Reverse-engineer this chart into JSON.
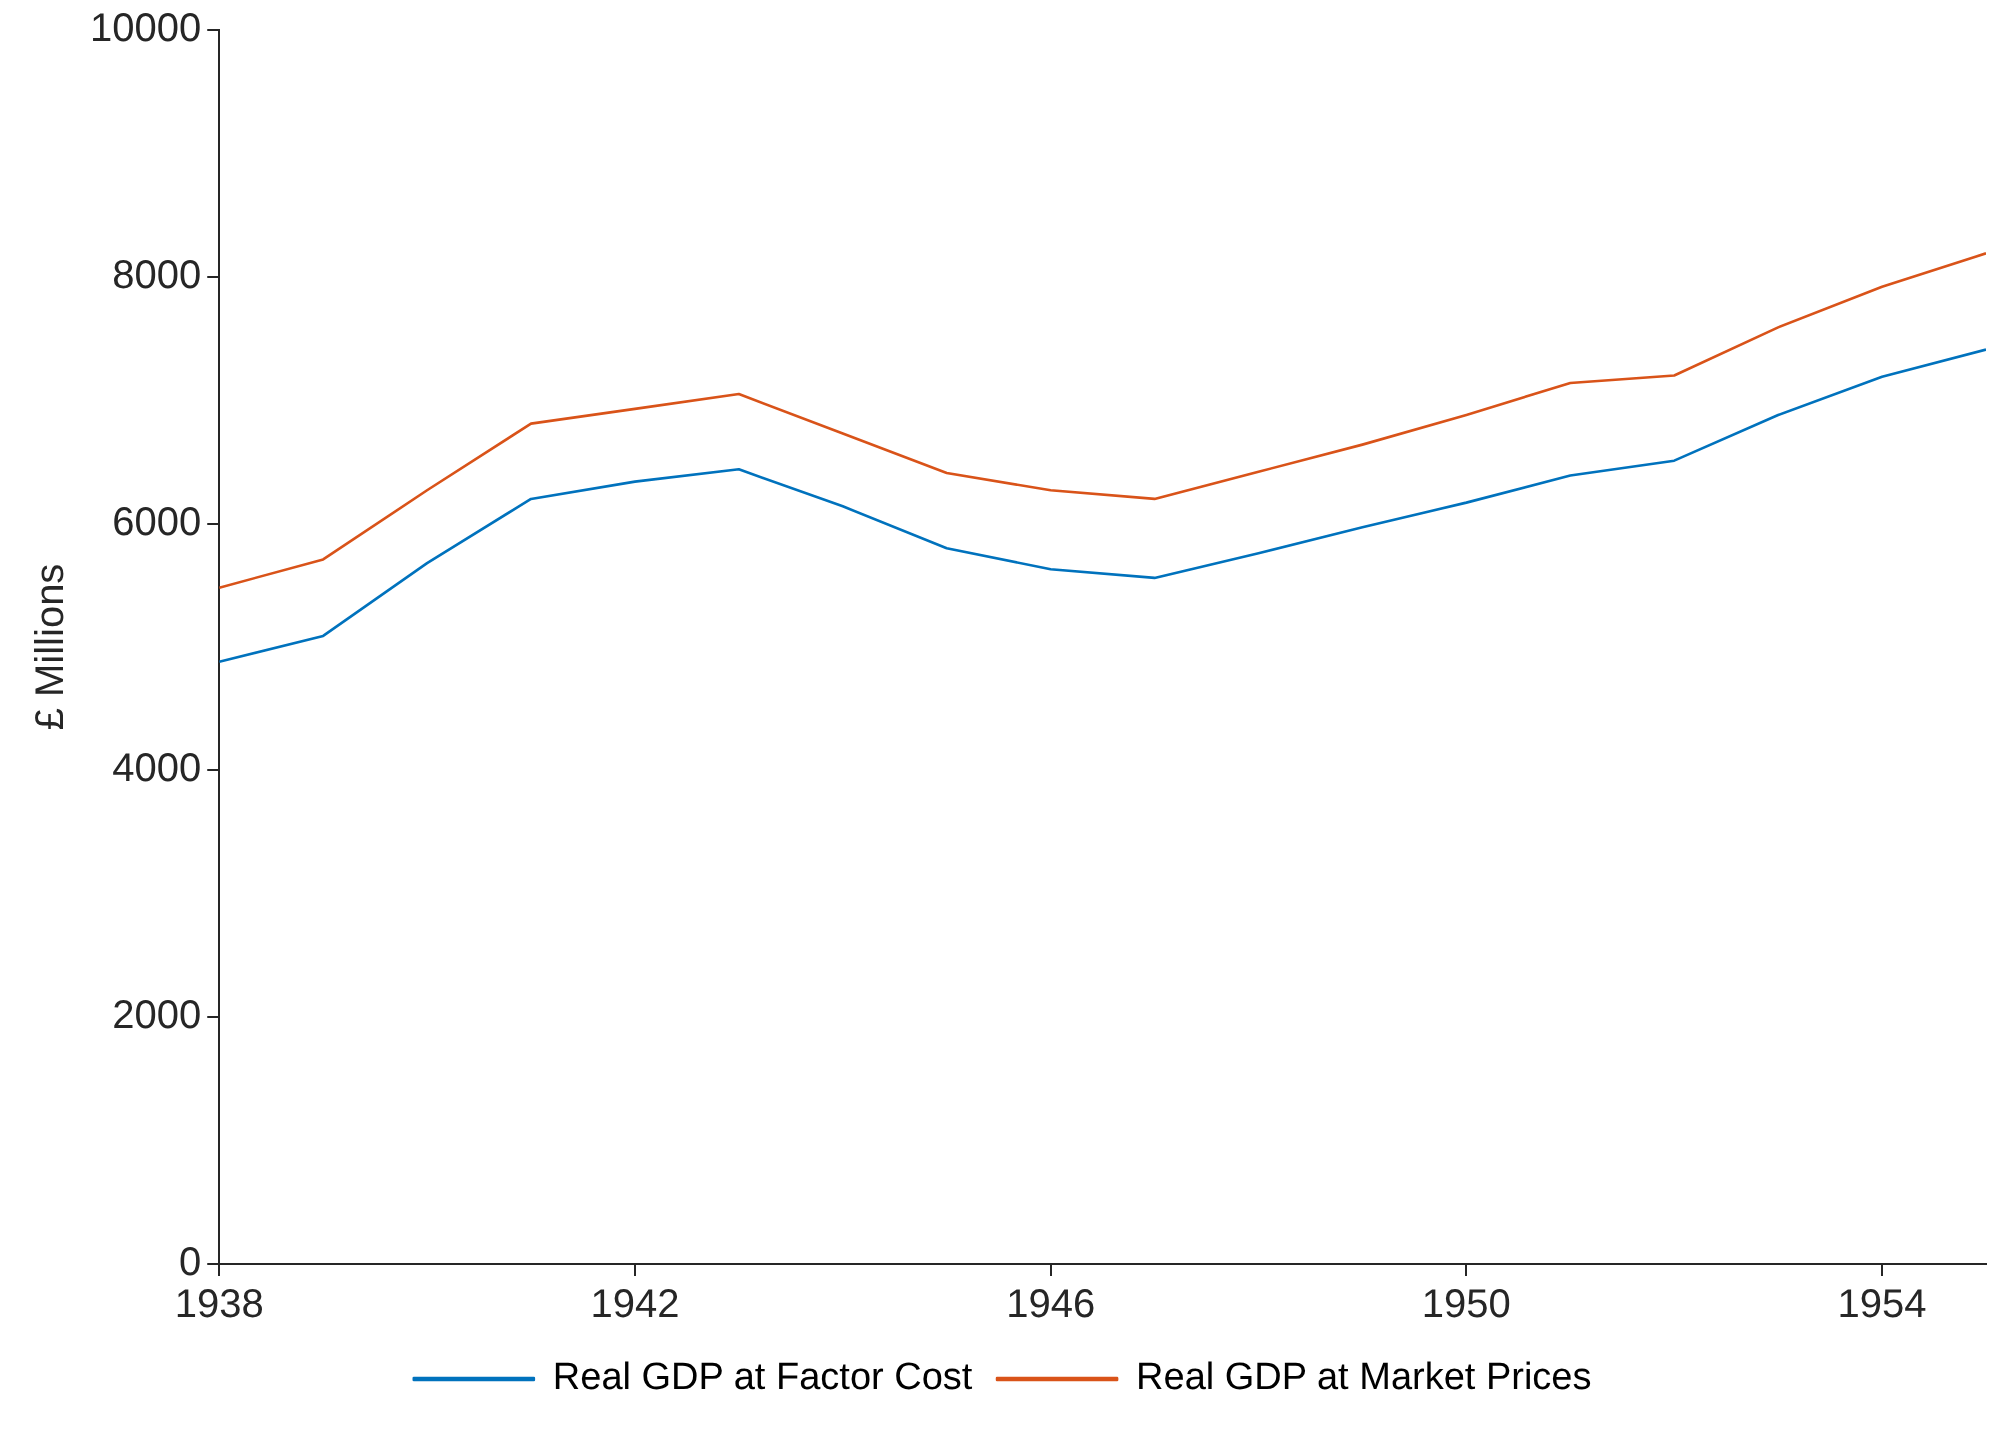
{
  "chart_data": {
    "type": "line",
    "ylabel": "£ Millions",
    "x": [
      1938,
      1939,
      1940,
      1941,
      1942,
      1943,
      1944,
      1945,
      1946,
      1947,
      1948,
      1949,
      1950,
      1951,
      1952,
      1953,
      1954,
      1955
    ],
    "series": [
      {
        "name": "Real GDP at Factor Cost",
        "color": "#0072bd",
        "values": [
          4880,
          5090,
          5680,
          6200,
          6340,
          6440,
          6140,
          5800,
          5630,
          5560,
          5760,
          5970,
          6170,
          6390,
          6510,
          6880,
          7190,
          7410
        ]
      },
      {
        "name": "Real GDP at Market Prices",
        "color": "#d95319",
        "values": [
          5480,
          5710,
          6270,
          6810,
          6930,
          7050,
          6730,
          6410,
          6270,
          6200,
          6420,
          6640,
          6880,
          7140,
          7200,
          7590,
          7920,
          8190
        ]
      }
    ],
    "xlim": [
      1938,
      1955
    ],
    "xticks": [
      1938,
      1942,
      1946,
      1950,
      1954
    ],
    "ylim": [
      0,
      10000
    ],
    "yticks": [
      0,
      2000,
      4000,
      6000,
      8000,
      10000
    ],
    "grid": false,
    "legend": "bottom",
    "marker": "none",
    "line_style": "solid"
  }
}
